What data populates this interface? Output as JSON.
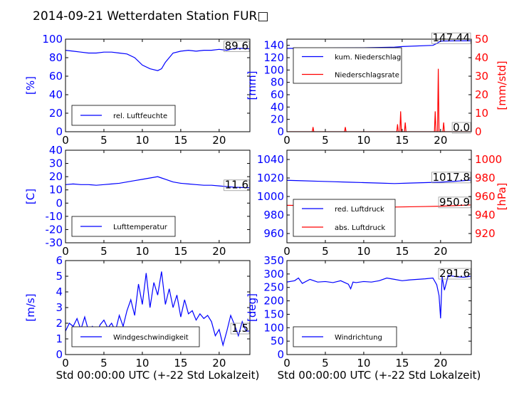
{
  "title": "2014-09-21 Wetterdaten Station FUR□",
  "colors": {
    "blue": "#0000ff",
    "red": "#ff0000",
    "black": "#000000",
    "light_blue": "#6a6aff"
  },
  "chart_data": [
    {
      "type": "line",
      "panel": "humidity",
      "xlabel": "",
      "ylabel": "[%]",
      "xlim": [
        0,
        24
      ],
      "ylim": [
        0,
        100
      ],
      "xticks": [
        0,
        5,
        10,
        15,
        20
      ],
      "yticks": [
        0,
        20,
        40,
        60,
        80,
        100
      ],
      "legend_position": "lower-left",
      "series": [
        {
          "name": "rel. Luftfeuchte",
          "color": "#0000ff",
          "x": [
            0,
            1,
            2,
            3,
            4,
            5,
            6,
            7,
            8,
            9,
            10,
            11,
            12,
            12.5,
            13,
            14,
            15,
            16,
            17,
            18,
            19,
            20,
            21,
            22,
            23,
            24
          ],
          "y": [
            88,
            87,
            86,
            85,
            85,
            86,
            86,
            85,
            84,
            80,
            72,
            68,
            66,
            68,
            75,
            85,
            87,
            88,
            87,
            88,
            88,
            89,
            88,
            90,
            90,
            89.6
          ]
        }
      ],
      "last_value_label": "89.6"
    },
    {
      "type": "line",
      "panel": "precipitation",
      "xlabel": "",
      "ylabel": "[mm]",
      "ylabel_right": "[mm/std]",
      "xlim": [
        0,
        24
      ],
      "ylim": [
        0,
        150
      ],
      "ylim_right": [
        0,
        50
      ],
      "xticks": [
        0,
        5,
        10,
        15,
        20
      ],
      "yticks": [
        0,
        20,
        40,
        60,
        80,
        100,
        120,
        140
      ],
      "yticks_right": [
        0,
        10,
        20,
        30,
        40,
        50
      ],
      "legend_position": "upper-left",
      "series": [
        {
          "name": "kum. Niederschlag",
          "color": "#0000ff",
          "axis": "left",
          "x": [
            0,
            5,
            10,
            14,
            15,
            19,
            19.5,
            20,
            24
          ],
          "y": [
            135,
            135.5,
            136,
            137,
            138,
            140,
            143,
            147,
            147.44
          ]
        },
        {
          "name": "Niederschlagsrate",
          "color": "#ff0000",
          "axis": "right",
          "x": [
            0,
            3.3,
            3.4,
            3.5,
            7.5,
            7.6,
            7.7,
            14.3,
            14.4,
            14.5,
            14.7,
            14.8,
            14.9,
            15.3,
            15.4,
            15.5,
            19.2,
            19.3,
            19.4,
            19.6,
            19.7,
            19.8,
            20.3,
            20.4,
            20.5,
            24
          ],
          "y": [
            0,
            0,
            2.5,
            0,
            0,
            2.5,
            0,
            0,
            4,
            0,
            0,
            11,
            0,
            0,
            5,
            0,
            0,
            11,
            0,
            0,
            34,
            0,
            0,
            5,
            0,
            0
          ]
        }
      ],
      "last_value_label": "147.44",
      "last_value_label_right": "0.0"
    },
    {
      "type": "line",
      "panel": "temperature",
      "xlabel": "",
      "ylabel": "[C]",
      "xlim": [
        0,
        24
      ],
      "ylim": [
        -30,
        40
      ],
      "xticks": [
        0,
        5,
        10,
        15,
        20
      ],
      "yticks": [
        -30,
        -20,
        -10,
        0,
        10,
        20,
        30,
        40
      ],
      "legend_position": "lower-left",
      "series": [
        {
          "name": "Lufttemperatur",
          "color": "#0000ff",
          "x": [
            0,
            1,
            2,
            3,
            4,
            5,
            6,
            7,
            8,
            9,
            10,
            11,
            12,
            12.5,
            13,
            14,
            15,
            16,
            17,
            18,
            19,
            20,
            21,
            22,
            23,
            24
          ],
          "y": [
            14,
            14.5,
            14,
            14,
            13.5,
            14,
            14.5,
            15,
            16,
            17,
            18,
            19,
            20,
            19,
            18,
            16,
            15,
            14.5,
            14,
            13.5,
            13.5,
            13,
            12.5,
            12,
            11.8,
            11.6
          ]
        }
      ],
      "last_value_label": "11.6"
    },
    {
      "type": "line",
      "panel": "pressure",
      "xlabel": "",
      "ylabel": "",
      "ylabel_right": "[hPa]",
      "xlim": [
        0,
        24
      ],
      "ylim": [
        950,
        1050
      ],
      "ylim_right": [
        910,
        1010
      ],
      "xticks": [
        0,
        5,
        10,
        15,
        20
      ],
      "yticks": [
        960,
        980,
        1000,
        1020,
        1040
      ],
      "yticks_right": [
        920,
        940,
        960,
        980,
        1000
      ],
      "legend_position": "lower-left",
      "series": [
        {
          "name": "red. Luftdruck",
          "color": "#0000ff",
          "axis": "left",
          "x": [
            0,
            2,
            4,
            6,
            8,
            10,
            12,
            14,
            16,
            18,
            20,
            22,
            24
          ],
          "y": [
            1017.5,
            1017,
            1016.5,
            1016,
            1015.5,
            1015,
            1014.5,
            1014,
            1014.5,
            1015,
            1015.5,
            1016.5,
            1017.8
          ]
        },
        {
          "name": "abs. Luftdruck",
          "color": "#ff0000",
          "axis": "right",
          "x": [
            0,
            2,
            4,
            6,
            8,
            10,
            12,
            14,
            16,
            18,
            20,
            22,
            24
          ],
          "y": [
            950.5,
            950.3,
            950,
            949.7,
            949.4,
            949.2,
            948.9,
            948.6,
            948.9,
            949.2,
            949.5,
            950.2,
            950.9
          ]
        }
      ],
      "last_value_label": "1017.8",
      "last_value_label_right": "950.9"
    },
    {
      "type": "line",
      "panel": "wind_speed",
      "xlabel": "Std 00:00:00 UTC (+-22 Std Lokalzeit)",
      "ylabel": "[m/s]",
      "xlim": [
        0,
        24
      ],
      "ylim": [
        0,
        6
      ],
      "xticks": [
        0,
        5,
        10,
        15,
        20
      ],
      "yticks": [
        0,
        1,
        2,
        3,
        4,
        5,
        6
      ],
      "legend_position": "lower-center",
      "series": [
        {
          "name": "Windgeschwindigkeit",
          "color": "#0000ff",
          "x": [
            0,
            0.5,
            1,
            1.5,
            2,
            2.5,
            3,
            3.5,
            4,
            4.5,
            5,
            5.5,
            6,
            6.5,
            7,
            7.5,
            8,
            8.5,
            9,
            9.5,
            10,
            10.5,
            11,
            11.5,
            12,
            12.5,
            13,
            13.5,
            14,
            14.5,
            15,
            15.5,
            16,
            16.5,
            17,
            17.5,
            18,
            18.5,
            19,
            19.5,
            20,
            20.5,
            21,
            21.5,
            22,
            22.5,
            23,
            23.5,
            24
          ],
          "y": [
            1.5,
            2.0,
            1.8,
            2.3,
            1.6,
            2.4,
            1.5,
            1.8,
            1.2,
            1.9,
            2.2,
            1.7,
            2.0,
            1.5,
            2.5,
            1.8,
            2.8,
            3.5,
            2.5,
            4.5,
            3.2,
            5.2,
            3.0,
            4.6,
            3.8,
            5.3,
            3.2,
            4.2,
            3.0,
            3.8,
            2.4,
            3.5,
            2.6,
            2.8,
            2.2,
            2.6,
            2.3,
            2.5,
            2.1,
            1.2,
            1.6,
            0.6,
            1.5,
            2.5,
            1.9,
            1.2,
            2.1,
            1.5,
            1.5
          ]
        }
      ],
      "last_value_label": "1.5"
    },
    {
      "type": "line",
      "panel": "wind_direction",
      "xlabel": "Std 00:00:00 UTC (+-22 Std Lokalzeit)",
      "ylabel": "[deg]",
      "xlim": [
        0,
        24
      ],
      "ylim": [
        0,
        350
      ],
      "xticks": [
        0,
        5,
        10,
        15,
        20
      ],
      "yticks": [
        0,
        50,
        100,
        150,
        200,
        250,
        300,
        350
      ],
      "legend_position": "lower-left",
      "series": [
        {
          "name": "Windrichtung",
          "color": "#0000ff",
          "x": [
            0,
            1,
            1.5,
            2,
            3,
            4,
            5,
            6,
            7,
            8,
            8.3,
            8.6,
            9,
            10,
            11,
            12,
            13,
            14,
            15,
            16,
            17,
            18,
            19,
            19.5,
            19.8,
            20,
            20.2,
            20.5,
            21,
            22,
            23,
            24
          ],
          "y": [
            270,
            275,
            285,
            265,
            280,
            270,
            272,
            268,
            275,
            262,
            245,
            270,
            268,
            272,
            270,
            275,
            285,
            280,
            275,
            278,
            280,
            282,
            285,
            260,
            220,
            135,
            290,
            240,
            295,
            290,
            288,
            291.6
          ]
        }
      ],
      "last_value_label": "291.6"
    }
  ]
}
